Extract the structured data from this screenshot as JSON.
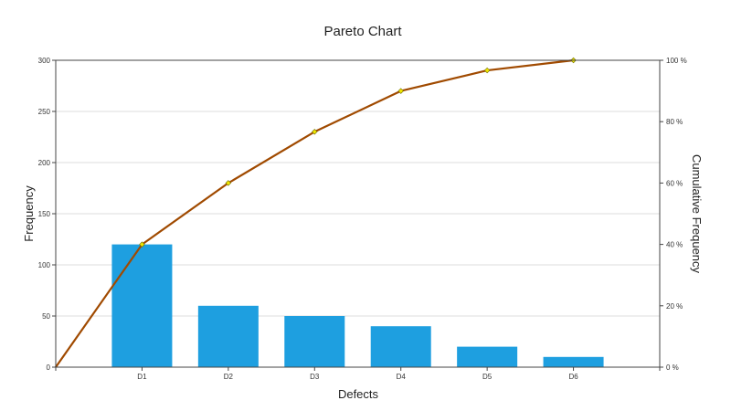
{
  "chart_data": {
    "type": "bar",
    "title": "Pareto Chart",
    "xlabel": "Defects",
    "ylabel": "Frequency",
    "y2label": "Cumulative Frequency",
    "categories": [
      "D1",
      "D2",
      "D3",
      "D4",
      "D5",
      "D6"
    ],
    "series": [
      {
        "type": "bar",
        "values": [
          120,
          60,
          50,
          40,
          20,
          10
        ]
      },
      {
        "type": "line",
        "axis": "right",
        "x_start": 0,
        "values_percent": [
          0,
          40,
          60,
          76.7,
          90,
          96.7,
          100
        ]
      }
    ],
    "ylim": [
      0,
      300
    ],
    "yticks": [
      0,
      50,
      100,
      150,
      200,
      250,
      300
    ],
    "y2lim": [
      0,
      100
    ],
    "y2ticks": [
      "0 %",
      "20 %",
      "40 %",
      "60 %",
      "80 %",
      "100 %"
    ],
    "grid": true,
    "legend": "none",
    "colors": {
      "bar": "#1e9fe0",
      "line": "#a04a00",
      "marker": "#f2e600"
    }
  }
}
